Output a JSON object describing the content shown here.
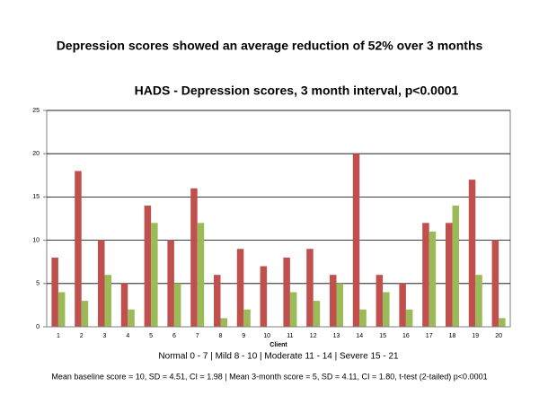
{
  "chart_data": {
    "type": "bar",
    "heading": "Depression scores showed an average reduction of 52% over 3 months",
    "title": "HADS - Depression scores, 3 month interval, p<0.0001",
    "xlabel": "Client",
    "notes": [
      "Normal 0 - 7  |  Mild 8 - 10  |  Moderate 11 - 14  |  Severe 15 - 21",
      "Mean baseline score = 10, SD = 4.51, CI = 1.98 | Mean 3-month score =  5, SD = 4.11, CI = 1.80,  t-test (2-tailed) p<0.0001"
    ],
    "categories": [
      "1",
      "2",
      "3",
      "4",
      "5",
      "6",
      "7",
      "8",
      "9",
      "10",
      "11",
      "12",
      "13",
      "14",
      "15",
      "16",
      "17",
      "18",
      "19",
      "20"
    ],
    "series": [
      {
        "color": "#c0504d",
        "values": [
          8,
          18,
          10,
          5,
          14,
          10,
          16,
          6,
          9,
          7,
          8,
          9,
          6,
          20,
          6,
          5,
          12,
          12,
          17,
          10
        ]
      },
      {
        "color": "#9bbb59",
        "values": [
          4,
          3,
          6,
          2,
          12,
          5,
          12,
          1,
          2,
          0,
          4,
          3,
          5,
          2,
          4,
          2,
          11,
          14,
          6,
          1
        ]
      }
    ],
    "ylim": [
      0,
      25
    ],
    "yticks": [
      0,
      5,
      10,
      15,
      20,
      25
    ],
    "grid": true
  }
}
